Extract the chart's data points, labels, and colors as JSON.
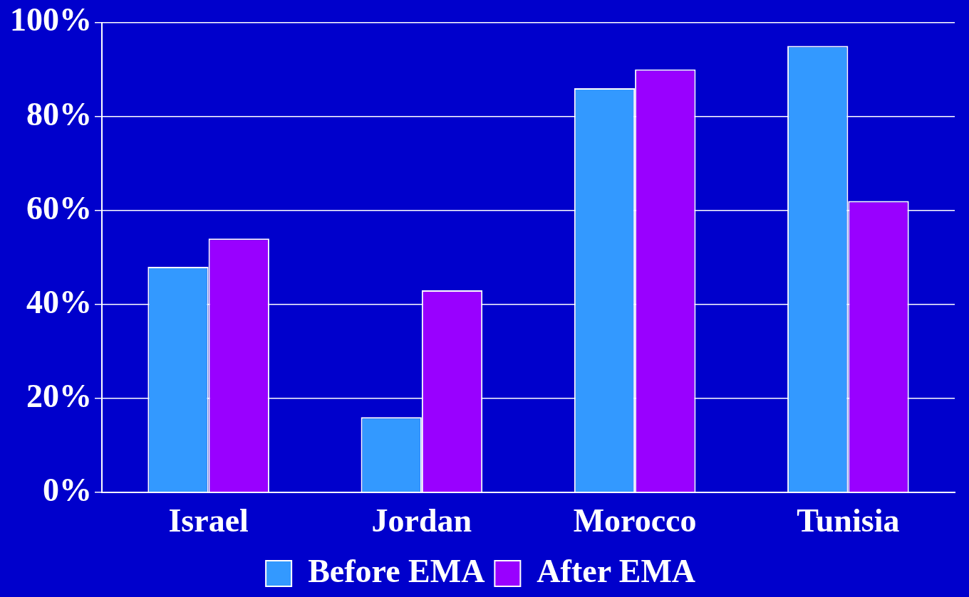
{
  "chart_data": {
    "type": "bar",
    "categories": [
      "Israel",
      "Jordan",
      "Morocco",
      "Tunisia"
    ],
    "series": [
      {
        "name": "Before EMA",
        "color": "#3399ff",
        "values": [
          48,
          16,
          86,
          95
        ]
      },
      {
        "name": "After EMA",
        "color": "#9900ff",
        "values": [
          54,
          43,
          90,
          62
        ]
      }
    ],
    "ylim": [
      0,
      100
    ],
    "yticks": [
      {
        "value": 0,
        "label": "0%"
      },
      {
        "value": 20,
        "label": "20%"
      },
      {
        "value": 40,
        "label": "40%"
      },
      {
        "value": 60,
        "label": "60%"
      },
      {
        "value": 80,
        "label": "80%"
      },
      {
        "value": 100,
        "label": "100%"
      }
    ],
    "grid": "y",
    "legend": "bottom"
  }
}
